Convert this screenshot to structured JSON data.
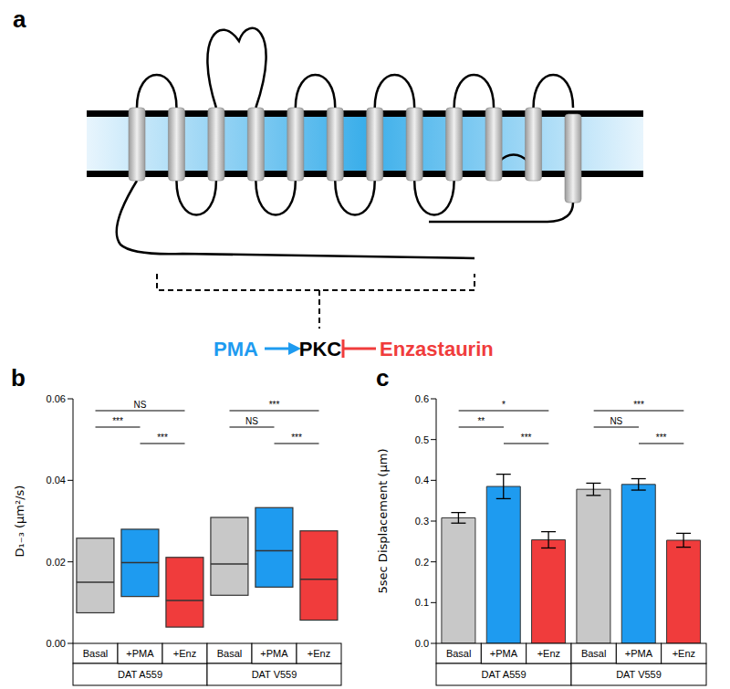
{
  "panel_a": {
    "panel": "a",
    "activator": {
      "label": "PMA",
      "color": "#1e9bf0"
    },
    "kinase": {
      "label": "PKC",
      "color": "#000000"
    },
    "inhibitor": {
      "label": "Enzastaurin",
      "color": "#f03c3c"
    }
  },
  "chart_data": [
    {
      "panel": "b",
      "type": "box",
      "y_label": "D₁₋₃ (μm²/s)",
      "categories": [
        "Basal",
        "+PMA",
        "+Enz",
        "Basal",
        "+PMA",
        "+Enz"
      ],
      "groups": [
        "DAT A559",
        "DAT V559"
      ],
      "low": [
        0.0075,
        0.0115,
        0.004,
        0.0118,
        0.0138,
        0.0057
      ],
      "median": [
        0.015,
        0.0198,
        0.0105,
        0.0195,
        0.0227,
        0.0157
      ],
      "high": [
        0.0258,
        0.028,
        0.0211,
        0.0309,
        0.0333,
        0.0276
      ],
      "colors": [
        "#c8c8c8",
        "#1e9bf0",
        "#f03c3c",
        "#c8c8c8",
        "#1e9bf0",
        "#f03c3c"
      ],
      "ylim": [
        0,
        0.06
      ],
      "yticks": [
        {
          "value": 0,
          "label": "0.00"
        },
        0.02,
        0.04,
        0.06
      ],
      "annotations": [
        {
          "group": "DAT A559",
          "from": "Basal",
          "to": "+Enz",
          "label": "NS"
        },
        {
          "group": "DAT A559",
          "from": "Basal",
          "to": "+PMA",
          "label": "***"
        },
        {
          "group": "DAT A559",
          "from": "+PMA",
          "to": "+Enz",
          "label": "***"
        },
        {
          "group": "DAT V559",
          "from": "Basal",
          "to": "+Enz",
          "label": "***"
        },
        {
          "group": "DAT V559",
          "from": "Basal",
          "to": "+PMA",
          "label": "NS"
        },
        {
          "group": "DAT V559",
          "from": "+PMA",
          "to": "+Enz",
          "label": "***"
        }
      ]
    },
    {
      "panel": "c",
      "type": "bar",
      "y_label": "5sec Displacement (μm)",
      "categories": [
        "Basal",
        "+PMA",
        "+Enz",
        "Basal",
        "+PMA",
        "+Enz"
      ],
      "groups": [
        "DAT A559",
        "DAT V559"
      ],
      "values": [
        0.308,
        0.385,
        0.254,
        0.378,
        0.39,
        0.253
      ],
      "errors": [
        0.013,
        0.03,
        0.02,
        0.015,
        0.014,
        0.017
      ],
      "colors": [
        "#c8c8c8",
        "#1e9bf0",
        "#f03c3c",
        "#c8c8c8",
        "#1e9bf0",
        "#f03c3c"
      ],
      "ylim": [
        0,
        0.6
      ],
      "yticks": [
        {
          "value": 0,
          "label": "0.0"
        },
        0.1,
        0.2,
        0.3,
        0.4,
        0.5,
        0.6
      ],
      "annotations": [
        {
          "group": "DAT A559",
          "from": "Basal",
          "to": "+Enz",
          "label": "*"
        },
        {
          "group": "DAT A559",
          "from": "Basal",
          "to": "+PMA",
          "label": "**"
        },
        {
          "group": "DAT A559",
          "from": "+PMA",
          "to": "+Enz",
          "label": "***"
        },
        {
          "group": "DAT V559",
          "from": "Basal",
          "to": "+Enz",
          "label": "***"
        },
        {
          "group": "DAT V559",
          "from": "Basal",
          "to": "+PMA",
          "label": "NS"
        },
        {
          "group": "DAT V559",
          "from": "+PMA",
          "to": "+Enz",
          "label": "***"
        }
      ]
    }
  ]
}
